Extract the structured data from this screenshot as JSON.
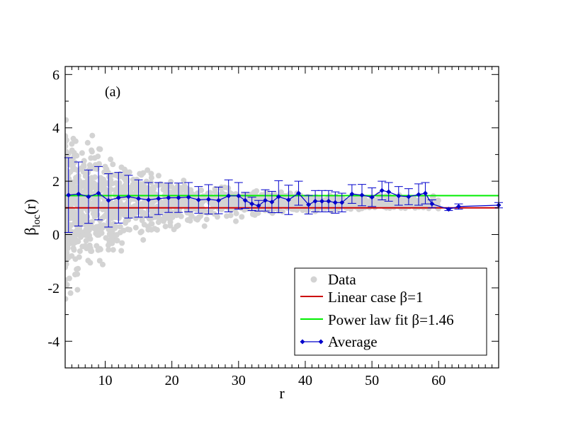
{
  "chart_data": {
    "type": "scatter",
    "panel_label": "(a)",
    "xlabel": "r",
    "ylabel": {
      "main": "β",
      "sub": "loc",
      "suffix": "(r)"
    },
    "xlim": [
      4,
      69
    ],
    "ylim": [
      -5,
      6.3
    ],
    "x_ticks": [
      10,
      20,
      30,
      40,
      50,
      60
    ],
    "y_ticks": [
      -4,
      -2,
      0,
      2,
      4,
      6
    ],
    "colors": {
      "data": "#d3d3d3",
      "linear": "#cc0000",
      "power": "#00ee00",
      "average": "#0000cc"
    },
    "legend": {
      "position": "bottom-right",
      "entries": [
        {
          "label": "Data",
          "marker": "circle",
          "color": "#d3d3d3"
        },
        {
          "label": "Linear case β=1",
          "marker": "line",
          "color": "#cc0000"
        },
        {
          "label": "Power law fit β=1.46",
          "marker": "line",
          "color": "#00ee00"
        },
        {
          "label": "Average",
          "marker": "line-diamond",
          "color": "#0000cc"
        }
      ]
    },
    "reference_lines": [
      {
        "name": "Linear case β=1",
        "y": 1.0
      },
      {
        "name": "Power law fit β=1.46",
        "y": 1.46
      }
    ],
    "average": {
      "x": [
        4.5,
        6,
        7.5,
        9,
        10.5,
        12,
        13.5,
        15,
        16.5,
        18,
        19.5,
        21,
        22.5,
        24,
        25.5,
        27,
        28.5,
        30,
        31,
        32,
        33,
        34,
        35,
        36,
        37.5,
        39,
        40.5,
        41.5,
        42.5,
        43.5,
        44.5,
        45.5,
        47,
        48.5,
        50,
        51.5,
        52.5,
        54,
        55.5,
        57,
        58,
        59,
        61.5,
        63,
        69
      ],
      "y": [
        1.48,
        1.52,
        1.42,
        1.55,
        1.28,
        1.38,
        1.42,
        1.35,
        1.3,
        1.35,
        1.38,
        1.38,
        1.4,
        1.3,
        1.32,
        1.28,
        1.45,
        1.45,
        1.28,
        1.15,
        1.08,
        1.28,
        1.22,
        1.42,
        1.3,
        1.55,
        1.12,
        1.25,
        1.25,
        1.25,
        1.2,
        1.2,
        1.52,
        1.48,
        1.4,
        1.65,
        1.6,
        1.45,
        1.42,
        1.5,
        1.55,
        1.15,
        0.95,
        1.05,
        1.1
      ],
      "err": [
        1.4,
        1.2,
        1.0,
        1.0,
        1.0,
        0.95,
        0.8,
        0.7,
        0.65,
        0.6,
        0.55,
        0.55,
        0.55,
        0.5,
        0.55,
        0.5,
        0.6,
        0.5,
        0.3,
        0.25,
        0.2,
        0.4,
        0.4,
        0.6,
        0.55,
        0.45,
        0.35,
        0.4,
        0.4,
        0.4,
        0.4,
        0.35,
        0.35,
        0.4,
        0.35,
        0.35,
        0.35,
        0.35,
        0.3,
        0.4,
        0.4,
        0.15,
        0.05,
        0.1,
        0.1
      ]
    },
    "data_description": "Dense cloud of grey points; spread about 1.2 shrinking from roughly ±4 at r=4 to about ±0.3 near r=60"
  }
}
